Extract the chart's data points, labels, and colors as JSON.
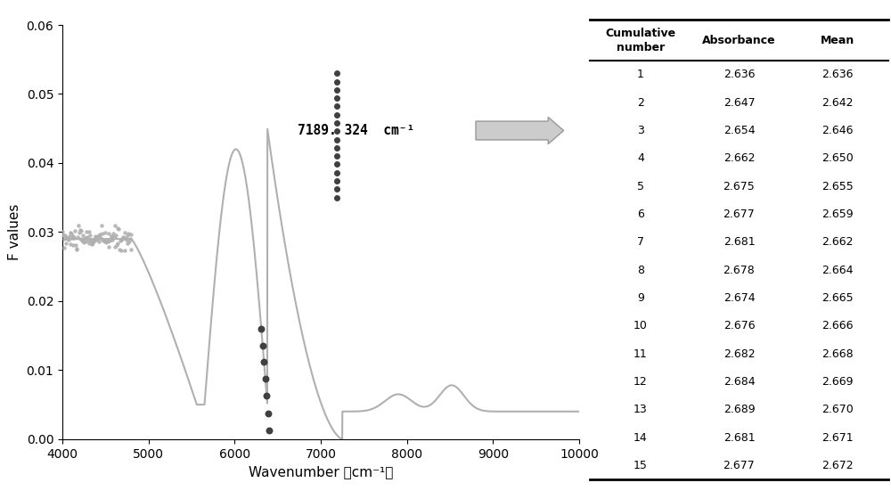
{
  "xlim": [
    4000,
    10000
  ],
  "ylim": [
    0,
    0.06
  ],
  "xlabel": "Wavenumber （cm⁻¹）",
  "ylabel": "F values",
  "yticks": [
    0,
    0.01,
    0.02,
    0.03,
    0.04,
    0.05,
    0.06
  ],
  "xticks": [
    4000,
    5000,
    6000,
    7000,
    8000,
    9000,
    10000
  ],
  "annotation_text": "7189. 324  cm⁻¹",
  "line_color": "#b0b0b0",
  "highlight_color": "#404040",
  "bg_color": "#f5f5f5",
  "table_headers": [
    "Cumulative\nnumber",
    "Absorbance",
    "Mean"
  ],
  "table_data": [
    [
      1,
      2.636,
      2.636
    ],
    [
      2,
      2.647,
      2.642
    ],
    [
      3,
      2.654,
      2.646
    ],
    [
      4,
      2.662,
      2.65
    ],
    [
      5,
      2.675,
      2.655
    ],
    [
      6,
      2.677,
      2.659
    ],
    [
      7,
      2.681,
      2.662
    ],
    [
      8,
      2.678,
      2.664
    ],
    [
      9,
      2.674,
      2.665
    ],
    [
      10,
      2.676,
      2.666
    ],
    [
      11,
      2.682,
      2.668
    ],
    [
      12,
      2.684,
      2.669
    ],
    [
      13,
      2.689,
      2.67
    ],
    [
      14,
      2.681,
      2.671
    ],
    [
      15,
      2.677,
      2.672
    ]
  ]
}
